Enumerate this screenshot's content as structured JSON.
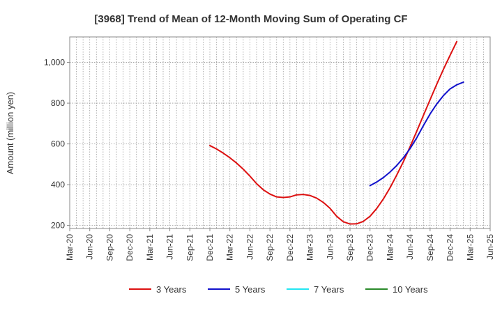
{
  "chart_data": {
    "type": "line",
    "title": "[3968]  Trend of Mean of 12-Month Moving Sum of Operating CF",
    "xlabel": "",
    "ylabel": "Amount (million yen)",
    "ylim": [
      185,
      1125
    ],
    "y_ticks": [
      200,
      400,
      600,
      800,
      1000
    ],
    "y_tick_labels": [
      "200",
      "400",
      "600",
      "800",
      "1,000"
    ],
    "x_tick_labels": [
      "Mar-20",
      "Jun-20",
      "Sep-20",
      "Dec-20",
      "Mar-21",
      "Jun-21",
      "Sep-21",
      "Dec-21",
      "Mar-22",
      "Jun-22",
      "Sep-22",
      "Dec-22",
      "Mar-23",
      "Jun-23",
      "Sep-23",
      "Dec-23",
      "Mar-24",
      "Jun-24",
      "Sep-24",
      "Dec-24",
      "Mar-25",
      "Jun-25"
    ],
    "x_range_months": [
      0,
      63
    ],
    "grid": true,
    "legend_position": "bottom",
    "series": [
      {
        "name": "3 Years",
        "color": "#dd1111",
        "x_start_index": 21,
        "values": [
          592,
          575,
          555,
          532,
          506,
          476,
          442,
          405,
          375,
          354,
          340,
          337,
          340,
          350,
          352,
          347,
          334,
          313,
          284,
          245,
          218,
          207,
          208,
          220,
          245,
          283,
          330,
          385,
          447,
          513,
          586,
          662,
          740,
          817,
          893,
          966,
          1035,
          1102
        ]
      },
      {
        "name": "5 Years",
        "color": "#1111cc",
        "x_start_index": 45,
        "values": [
          395,
          413,
          435,
          462,
          494,
          532,
          577,
          630,
          690,
          747,
          796,
          837,
          870,
          890,
          903
        ]
      },
      {
        "name": "7 Years",
        "color": "#22e6f2",
        "x_start_index": 0,
        "values": []
      },
      {
        "name": "10 Years",
        "color": "#2a8a2a",
        "x_start_index": 0,
        "values": []
      }
    ]
  }
}
